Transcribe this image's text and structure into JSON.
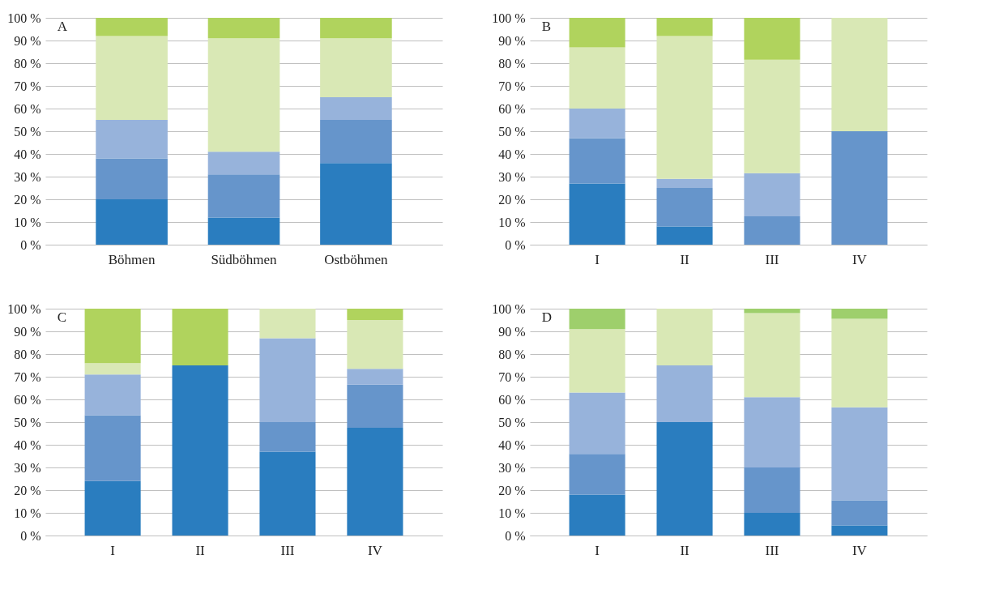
{
  "chart_data": [
    {
      "type": "bar",
      "stacked": true,
      "title": "A",
      "categories": [
        "Böhmen",
        "Südböhmen",
        "Ostböhmen"
      ],
      "ylim": [
        0,
        100
      ],
      "yticks": [
        {
          "value": 0,
          "label": "0 %"
        },
        {
          "value": 10,
          "label": "10 %"
        },
        {
          "value": 20,
          "label": "20 %"
        },
        {
          "value": 30,
          "label": "30 %"
        },
        {
          "value": 40,
          "label": "40 %"
        },
        {
          "value": 50,
          "label": "50 %"
        },
        {
          "value": 60,
          "label": "60 %"
        },
        {
          "value": 70,
          "label": "70 %"
        },
        {
          "value": 80,
          "label": "80 %"
        },
        {
          "value": 90,
          "label": "90 %"
        },
        {
          "value": 100,
          "label": "100 %"
        }
      ],
      "grid": "y",
      "series": [
        {
          "color": "#2a7dbf",
          "values": [
            20,
            12,
            36
          ]
        },
        {
          "color": "#6695cb",
          "values": [
            18,
            19,
            19
          ]
        },
        {
          "color": "#97b3db",
          "values": [
            17,
            10,
            10
          ]
        },
        {
          "color": "#d9e8b5",
          "values": [
            37,
            50,
            26
          ]
        },
        {
          "color": "#b0d35d",
          "values": [
            8,
            9,
            9
          ]
        }
      ]
    },
    {
      "type": "bar",
      "stacked": true,
      "title": "B",
      "categories": [
        "I",
        "II",
        "III",
        "IV"
      ],
      "ylim": [
        0,
        100
      ],
      "yticks": [
        {
          "value": 0,
          "label": "0 %"
        },
        {
          "value": 10,
          "label": "10 %"
        },
        {
          "value": 20,
          "label": "20 %"
        },
        {
          "value": 30,
          "label": "30 %"
        },
        {
          "value": 40,
          "label": "40 %"
        },
        {
          "value": 50,
          "label": "50 %"
        },
        {
          "value": 60,
          "label": "60 %"
        },
        {
          "value": 70,
          "label": "70 %"
        },
        {
          "value": 80,
          "label": "80 %"
        },
        {
          "value": 90,
          "label": "90 %"
        },
        {
          "value": 100,
          "label": "100 %"
        }
      ],
      "grid": "y",
      "series": [
        {
          "color": "#2a7dbf",
          "values": [
            27,
            8,
            0,
            0
          ]
        },
        {
          "color": "#6695cb",
          "values": [
            20,
            17,
            12.5,
            50
          ]
        },
        {
          "color": "#97b3db",
          "values": [
            13,
            4,
            19,
            0
          ]
        },
        {
          "color": "#d9e8b5",
          "values": [
            27,
            63,
            50,
            50
          ]
        },
        {
          "color": "#b0d35d",
          "values": [
            13,
            8,
            18.5,
            0
          ]
        }
      ]
    },
    {
      "type": "bar",
      "stacked": true,
      "title": "C",
      "categories": [
        "I",
        "II",
        "III",
        "IV"
      ],
      "ylim": [
        0,
        100
      ],
      "yticks": [
        {
          "value": 0,
          "label": "0 %"
        },
        {
          "value": 10,
          "label": "10 %"
        },
        {
          "value": 20,
          "label": "20 %"
        },
        {
          "value": 30,
          "label": "30 %"
        },
        {
          "value": 40,
          "label": "40 %"
        },
        {
          "value": 50,
          "label": "50 %"
        },
        {
          "value": 60,
          "label": "60 %"
        },
        {
          "value": 70,
          "label": "70 %"
        },
        {
          "value": 80,
          "label": "80 %"
        },
        {
          "value": 90,
          "label": "90 %"
        },
        {
          "value": 100,
          "label": "100 %"
        }
      ],
      "grid": "y",
      "series": [
        {
          "color": "#2a7dbf",
          "values": [
            24,
            75,
            37,
            47.5
          ]
        },
        {
          "color": "#6695cb",
          "values": [
            29,
            0,
            13,
            19
          ]
        },
        {
          "color": "#97b3db",
          "values": [
            18,
            0,
            37,
            7
          ]
        },
        {
          "color": "#d9e8b5",
          "values": [
            5,
            0,
            13,
            21.5
          ]
        },
        {
          "color": "#b0d35d",
          "values": [
            24,
            25,
            0,
            5
          ]
        }
      ]
    },
    {
      "type": "bar",
      "stacked": true,
      "title": "D",
      "categories": [
        "I",
        "II",
        "III",
        "IV"
      ],
      "ylim": [
        0,
        100
      ],
      "yticks": [
        {
          "value": 0,
          "label": "0 %"
        },
        {
          "value": 10,
          "label": "10 %"
        },
        {
          "value": 20,
          "label": "20 %"
        },
        {
          "value": 30,
          "label": "30 %"
        },
        {
          "value": 40,
          "label": "40 %"
        },
        {
          "value": 50,
          "label": "50 %"
        },
        {
          "value": 60,
          "label": "60 %"
        },
        {
          "value": 70,
          "label": "70 %"
        },
        {
          "value": 80,
          "label": "80 %"
        },
        {
          "value": 90,
          "label": "90 %"
        },
        {
          "value": 100,
          "label": "100 %"
        }
      ],
      "grid": "y",
      "series": [
        {
          "color": "#2a7dbf",
          "values": [
            18,
            50,
            10,
            4.5
          ]
        },
        {
          "color": "#6695cb",
          "values": [
            18,
            0,
            20,
            11
          ]
        },
        {
          "color": "#97b3db",
          "values": [
            27,
            25,
            31,
            41
          ]
        },
        {
          "color": "#d9e8b5",
          "values": [
            28,
            25,
            37,
            39
          ]
        },
        {
          "color": "#9ecf6c",
          "values": [
            9,
            0,
            2,
            4.5
          ]
        }
      ]
    }
  ]
}
